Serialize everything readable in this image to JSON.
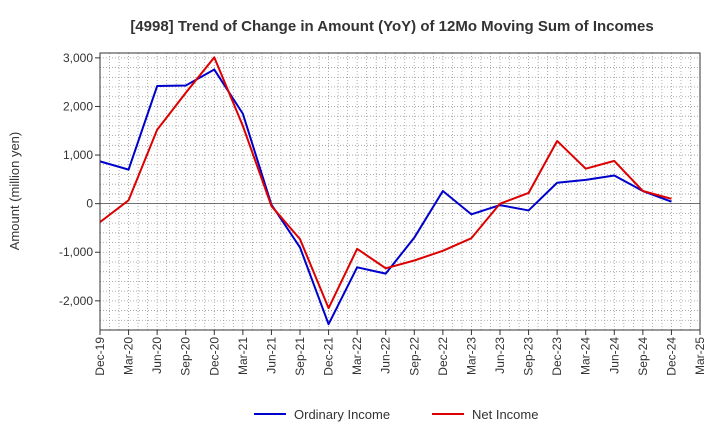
{
  "chart_data": {
    "type": "line",
    "title": "[4998]  Trend of Change in Amount (YoY) of 12Mo Moving Sum of Incomes",
    "xlabel": "",
    "ylabel": "Amount (million yen)",
    "ylim": [
      -2600,
      3100
    ],
    "yticks": [
      3000,
      2000,
      1000,
      0,
      -1000,
      -2000
    ],
    "ytick_labels": [
      "3,000",
      "2,000",
      "1,000",
      "0",
      "-1,000",
      "-2,000"
    ],
    "categories": [
      "Dec-19",
      "Mar-20",
      "Jun-20",
      "Sep-20",
      "Dec-20",
      "Mar-21",
      "Jun-21",
      "Sep-21",
      "Dec-21",
      "Mar-22",
      "Jun-22",
      "Sep-22",
      "Dec-22",
      "Mar-23",
      "Jun-23",
      "Sep-23",
      "Dec-23",
      "Mar-24",
      "Jun-24",
      "Sep-24",
      "Dec-24",
      "Mar-25"
    ],
    "grid": true,
    "legend_position": "bottom",
    "series": [
      {
        "name": "Ordinary Income",
        "color": "#0000cc",
        "values": [
          870,
          700,
          2420,
          2430,
          2760,
          1850,
          -20,
          -900,
          -2480,
          -1310,
          -1440,
          -700,
          260,
          -220,
          -30,
          -140,
          430,
          490,
          580,
          260,
          40,
          null
        ]
      },
      {
        "name": "Net Income",
        "color": "#dd0000",
        "values": [
          -380,
          70,
          1520,
          2280,
          3010,
          1600,
          -50,
          -730,
          -2150,
          -930,
          -1330,
          -1170,
          -970,
          -710,
          0,
          220,
          1290,
          720,
          880,
          260,
          100,
          null
        ]
      }
    ]
  }
}
